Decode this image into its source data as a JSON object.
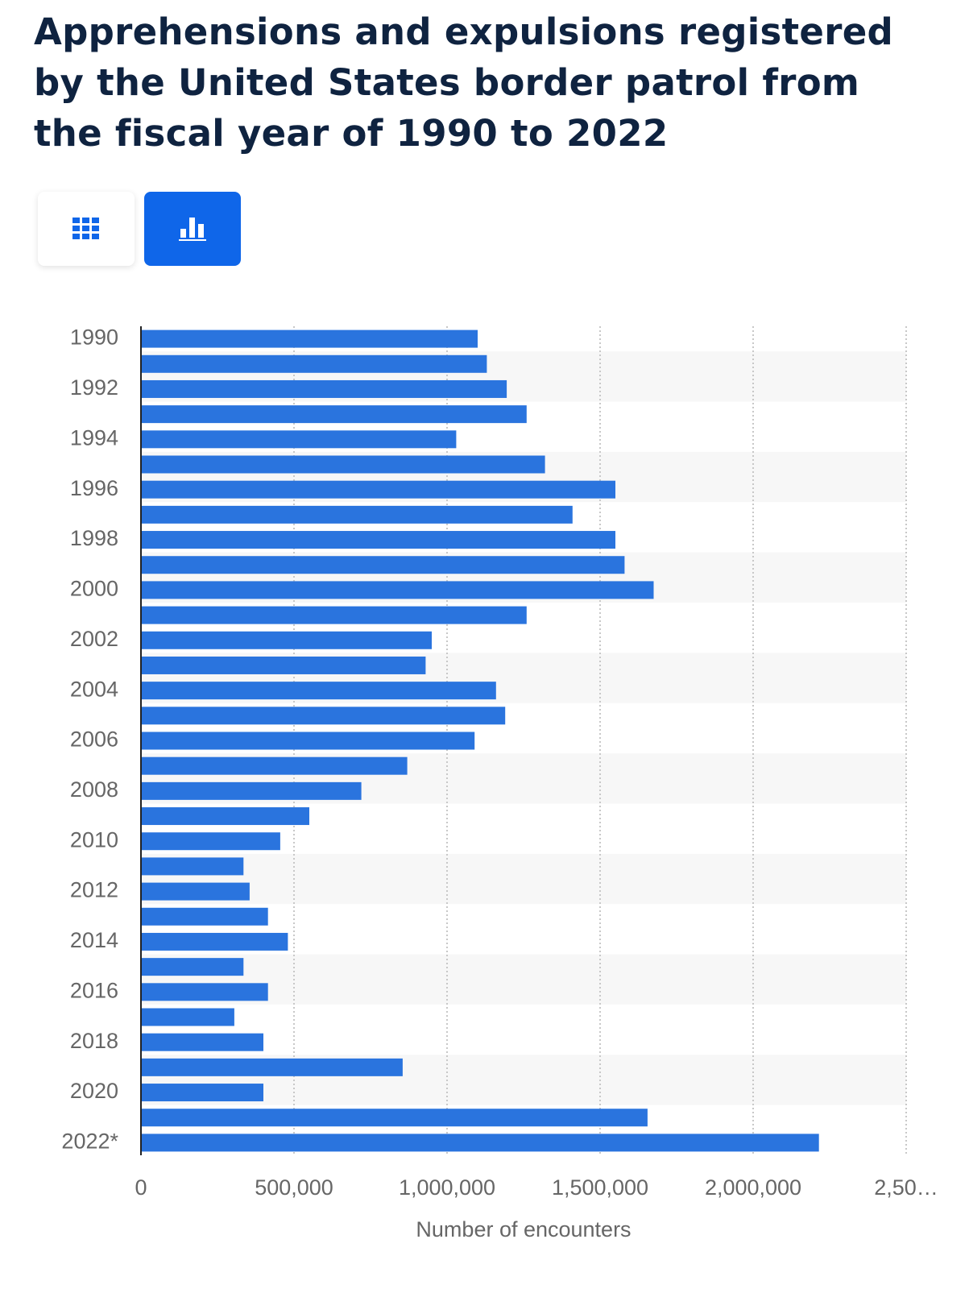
{
  "header": {
    "title": "Apprehensions and expulsions registered by the United States border patrol from the fiscal year of 1990 to 2022"
  },
  "chart_data": {
    "type": "bar",
    "orientation": "horizontal",
    "categories": [
      "1990",
      null,
      "1992",
      null,
      "1994",
      null,
      "1996",
      null,
      "1998",
      null,
      "2000",
      null,
      "2002",
      null,
      "2004",
      null,
      "2006",
      null,
      "2008",
      null,
      "2010",
      null,
      "2012",
      null,
      "2014",
      null,
      "2016",
      null,
      "2018",
      null,
      "2020",
      null,
      "2022*"
    ],
    "values": [
      1100000,
      1130000,
      1195000,
      1260000,
      1030000,
      1320000,
      1550000,
      1410000,
      1550000,
      1580000,
      1675000,
      1260000,
      950000,
      930000,
      1160000,
      1190000,
      1090000,
      870000,
      720000,
      550000,
      455000,
      335000,
      355000,
      415000,
      480000,
      335000,
      415000,
      305000,
      400000,
      855000,
      400000,
      1655000,
      2215000
    ],
    "color": "#2a74de",
    "xlim": [
      0,
      2500000
    ],
    "xticks": [
      0,
      {
        "value": 500000,
        "label": "500,000"
      },
      {
        "value": 1000000,
        "label": "1,000,000"
      },
      {
        "value": 1500000,
        "label": "1,500,000"
      },
      {
        "value": 2000000,
        "label": "2,000,000"
      },
      {
        "value": 2500000,
        "label": "2,50…"
      }
    ],
    "xlabel": "Number of encounters",
    "grid": true
  }
}
